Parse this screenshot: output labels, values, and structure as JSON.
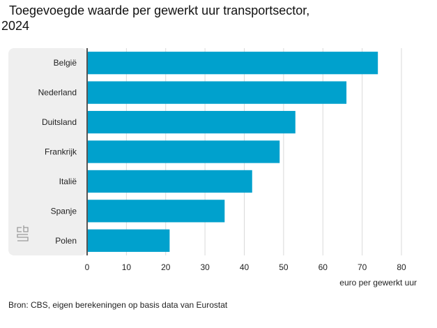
{
  "title_line1": "Toegevoegde waarde per gewerkt uur transportsector,",
  "title_line2": "2024",
  "source": "Bron: CBS, eigen berekeningen op basis data van Eurostat",
  "logo": "cbs-logo-icon",
  "colors": {
    "bar": "#00a1cd",
    "panel": "#efefef",
    "grid": "#d9d9d9",
    "axis": "#555555"
  },
  "chart_data": {
    "type": "bar",
    "orientation": "horizontal",
    "title": "Toegevoegde waarde per gewerkt uur transportsector, 2024",
    "categories": [
      "België",
      "Nederland",
      "Duitsland",
      "Frankrijk",
      "Italië",
      "Spanje",
      "Polen"
    ],
    "values": [
      74,
      66,
      53,
      49,
      42,
      35,
      21
    ],
    "xlabel": "euro per gewerkt uur",
    "ylabel": "",
    "xlim": [
      0,
      80
    ],
    "xticks": [
      0,
      10,
      20,
      30,
      40,
      50,
      60,
      70,
      80
    ],
    "grid": true,
    "legend": "none"
  }
}
